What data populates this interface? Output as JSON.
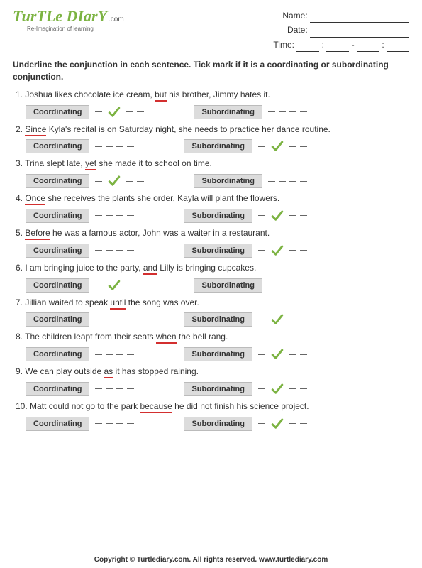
{
  "logo": {
    "main": "TurTLe DIarY",
    "suffix": ".com",
    "tagline": "Re-Imagination of learning"
  },
  "meta": {
    "name_label": "Name:",
    "date_label": "Date:",
    "time_label": "Time:"
  },
  "instructions": "Underline the conjunction in each sentence. Tick mark if it is a coordinating or subordinating conjunction.",
  "labels": {
    "coord": "Coordinating",
    "sub": "Subordinating"
  },
  "tick_color": "#7cb342",
  "underline_color": "#d32f2f",
  "questions": [
    {
      "n": "1",
      "pre": "Joshua likes chocolate ice cream, ",
      "conj": "but",
      "post": " his brother, Jimmy hates it.",
      "answer": "coord"
    },
    {
      "n": "2",
      "pre": "",
      "conj": "Since",
      "post": " Kyla's recital is on Saturday night, she needs to practice her dance routine.",
      "answer": "sub"
    },
    {
      "n": "3",
      "pre": "Trina slept late, ",
      "conj": "yet",
      "post": " she made it to school on time.",
      "answer": "coord"
    },
    {
      "n": "4",
      "pre": "",
      "conj": "Once",
      "post": " she receives the plants she order, Kayla will plant the flowers.",
      "answer": "sub"
    },
    {
      "n": "5",
      "pre": "",
      "conj": "Before",
      "post": " he was a famous actor, John was a waiter in a restaurant.",
      "answer": "sub"
    },
    {
      "n": "6",
      "pre": "I am bringing juice to the party, ",
      "conj": "and",
      "post": " Lilly is bringing cupcakes.",
      "answer": "coord"
    },
    {
      "n": "7",
      "pre": "Jillian waited to speak ",
      "conj": "until",
      "post": " the song was over.",
      "answer": "sub"
    },
    {
      "n": "8",
      "pre": "The children leapt from their seats ",
      "conj": "when",
      "post": " the bell rang.",
      "answer": "sub"
    },
    {
      "n": "9",
      "pre": "We can play outside ",
      "conj": "as",
      "post": " it has stopped raining.",
      "answer": "sub"
    },
    {
      "n": "10",
      "pre": "Matt could not go to the park ",
      "conj": "because",
      "post": " he did not finish his science project.",
      "answer": "sub"
    }
  ],
  "footer": "Copyright © Turtlediary.com. All rights reserved. www.turtlediary.com"
}
